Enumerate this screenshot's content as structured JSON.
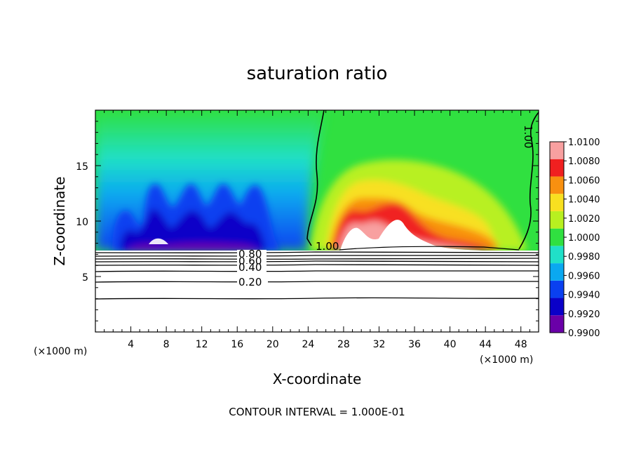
{
  "chart_data": {
    "type": "heatmap",
    "title": "saturation ratio",
    "xlabel": "X-coordinate",
    "ylabel": "Z-coordinate",
    "x_unit_left": "(×1000 m)",
    "x_unit_right": "(×1000 m)",
    "xlim": [
      0,
      50
    ],
    "ylim": [
      0,
      20
    ],
    "x_ticks": [
      4,
      8,
      12,
      16,
      20,
      24,
      28,
      32,
      36,
      40,
      44,
      48
    ],
    "y_ticks": [
      5,
      10,
      15
    ],
    "colorbar": {
      "levels": [
        "0.9900",
        "0.9920",
        "0.9940",
        "0.9960",
        "0.9980",
        "1.0000",
        "1.0020",
        "1.0040",
        "1.0060",
        "1.0080",
        "1.0100"
      ],
      "colors": [
        "#6a00a8",
        "#0a00c8",
        "#0a40f0",
        "#0aa8f0",
        "#20e0c8",
        "#30e040",
        "#b8f020",
        "#f8e020",
        "#f89010",
        "#f02020",
        "#f8a0a0"
      ]
    },
    "contour_labels": [
      "1.00",
      "1.00",
      "0.80",
      "0.60",
      "0.40",
      "0.20"
    ],
    "contour_levels_below": [
      0.2,
      0.3,
      0.4,
      0.5,
      0.6,
      0.7,
      0.8,
      0.9
    ],
    "footnote": "CONTOUR INTERVAL = 1.000E-01"
  }
}
